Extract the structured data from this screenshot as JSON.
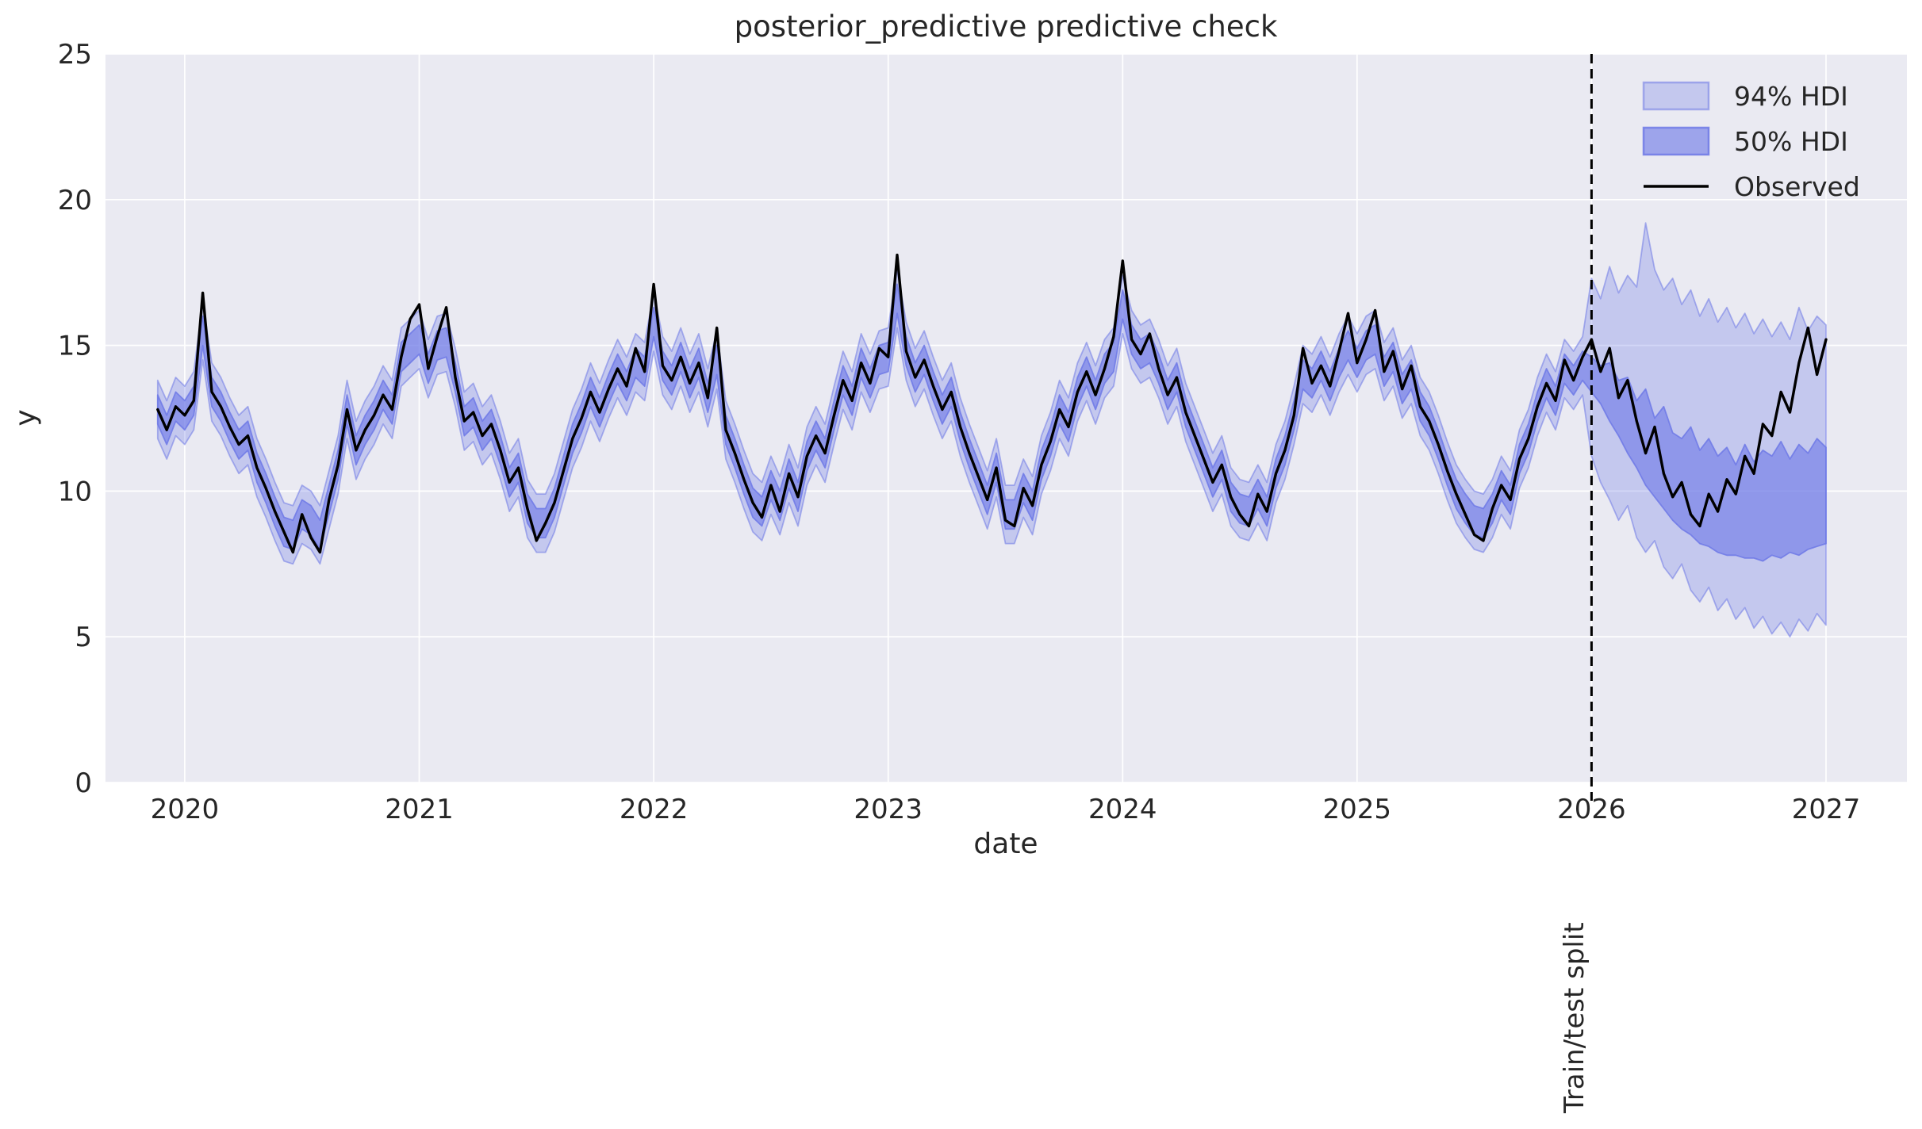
{
  "colors": {
    "figure_bg": "#ffffff",
    "axes_bg": "#eaeaf2",
    "grid": "#ffffff",
    "observed": "#000000",
    "band_base": "#6e79e6",
    "hdi94_fill_opacity": 0.3,
    "hdi94_edge_opacity": 0.55,
    "hdi50_fill_opacity": 0.62,
    "hdi50_edge_opacity": 0.85,
    "split_line": "#000000",
    "text": "#262626"
  },
  "chart_data": {
    "type": "line",
    "title": "posterior_predictive predictive check",
    "xlabel": "date",
    "ylabel": "y",
    "legend": [
      "94% HDI",
      "50% HDI",
      "Observed"
    ],
    "legend_position": "upper right",
    "grid": true,
    "xlim": [
      2019.662,
      2027.345
    ],
    "ylim": [
      0,
      25
    ],
    "xticks": [
      2020,
      2021,
      2022,
      2023,
      2024,
      2025,
      2026,
      2027
    ],
    "xtick_labels": [
      "2020",
      "2021",
      "2022",
      "2023",
      "2024",
      "2025",
      "2026",
      "2027"
    ],
    "yticks": [
      0,
      5,
      10,
      15,
      20,
      25
    ],
    "ytick_labels": [
      "0",
      "5",
      "10",
      "15",
      "20",
      "25"
    ],
    "annotation": {
      "text": "Train/test split",
      "x": 2026.0
    },
    "x_grid": {
      "start": 2019.8846,
      "step": 0.0384615,
      "n_points": 186,
      "unit": "decimal_year",
      "note": "biweekly samples; index 159 = 2026.0 train/test split"
    },
    "series": [
      {
        "name": "Observed",
        "values": [
          12.8,
          12.1,
          12.9,
          12.6,
          13.1,
          16.8,
          13.4,
          12.9,
          12.2,
          11.6,
          11.9,
          10.8,
          10.1,
          9.3,
          8.6,
          7.9,
          9.2,
          8.4,
          7.9,
          9.7,
          10.9,
          12.8,
          11.4,
          12.1,
          12.6,
          13.3,
          12.8,
          14.6,
          15.9,
          16.4,
          14.2,
          15.3,
          16.3,
          13.9,
          12.4,
          12.7,
          11.9,
          12.3,
          11.4,
          10.3,
          10.8,
          9.4,
          8.3,
          8.9,
          9.6,
          10.7,
          11.8,
          12.5,
          13.4,
          12.7,
          13.5,
          14.2,
          13.6,
          14.9,
          14.1,
          17.1,
          14.3,
          13.8,
          14.6,
          13.7,
          14.4,
          13.2,
          15.6,
          12.1,
          11.3,
          10.4,
          9.6,
          9.1,
          10.2,
          9.3,
          10.6,
          9.8,
          11.2,
          11.9,
          11.3,
          12.6,
          13.8,
          13.1,
          14.4,
          13.7,
          14.9,
          14.6,
          18.1,
          14.8,
          13.9,
          14.5,
          13.6,
          12.8,
          13.4,
          12.2,
          11.3,
          10.5,
          9.7,
          10.8,
          9.0,
          8.8,
          10.1,
          9.5,
          10.9,
          11.7,
          12.8,
          12.2,
          13.4,
          14.1,
          13.3,
          14.2,
          15.3,
          17.9,
          15.2,
          14.7,
          15.4,
          14.2,
          13.3,
          13.9,
          12.7,
          11.9,
          11.1,
          10.3,
          10.9,
          9.8,
          9.2,
          8.8,
          9.9,
          9.3,
          10.6,
          11.4,
          12.6,
          14.9,
          13.7,
          14.3,
          13.6,
          14.8,
          16.1,
          14.4,
          15.2,
          16.2,
          14.1,
          14.8,
          13.5,
          14.3,
          12.9,
          12.4,
          11.6,
          10.7,
          9.9,
          9.2,
          8.5,
          8.3,
          9.4,
          10.2,
          9.7,
          11.1,
          11.8,
          12.9,
          13.7,
          13.1,
          14.5,
          13.8,
          14.6,
          15.2,
          14.1,
          14.9,
          13.2,
          13.8,
          12.4,
          11.3,
          12.2,
          10.6,
          9.8,
          10.3,
          9.2,
          8.8,
          9.9,
          9.3,
          10.4,
          9.9,
          11.2,
          10.6,
          12.3,
          11.9,
          13.4,
          12.7,
          14.4,
          15.6,
          14.0,
          15.2
        ]
      },
      {
        "name": "94% HDI upper",
        "values": [
          13.8,
          13.1,
          13.9,
          13.6,
          14.1,
          16.5,
          14.4,
          13.9,
          13.2,
          12.6,
          12.9,
          11.8,
          11.1,
          10.3,
          9.6,
          9.5,
          10.2,
          10.0,
          9.5,
          10.7,
          11.9,
          13.8,
          12.4,
          13.1,
          13.6,
          14.3,
          13.8,
          15.6,
          15.9,
          16.2,
          15.2,
          16.0,
          16.1,
          14.9,
          13.4,
          13.7,
          12.9,
          13.3,
          12.4,
          11.3,
          11.8,
          10.4,
          9.9,
          9.9,
          10.6,
          11.7,
          12.8,
          13.5,
          14.4,
          13.7,
          14.5,
          15.2,
          14.6,
          15.4,
          15.1,
          16.8,
          15.3,
          14.8,
          15.6,
          14.7,
          15.4,
          14.2,
          15.5,
          13.1,
          12.3,
          11.4,
          10.6,
          10.3,
          11.2,
          10.5,
          11.6,
          10.8,
          12.2,
          12.9,
          12.3,
          13.6,
          14.8,
          14.1,
          15.4,
          14.7,
          15.5,
          15.6,
          17.6,
          15.8,
          14.9,
          15.5,
          14.6,
          13.8,
          14.4,
          13.2,
          12.3,
          11.5,
          10.7,
          11.8,
          10.2,
          10.2,
          11.1,
          10.5,
          11.9,
          12.7,
          13.8,
          13.2,
          14.4,
          15.1,
          14.3,
          15.2,
          15.6,
          17.4,
          16.2,
          15.7,
          15.9,
          15.2,
          14.3,
          14.9,
          13.7,
          12.9,
          12.1,
          11.3,
          11.9,
          10.8,
          10.4,
          10.3,
          10.9,
          10.3,
          11.6,
          12.4,
          13.6,
          15.0,
          14.7,
          15.3,
          14.6,
          15.4,
          16.0,
          15.4,
          16.0,
          16.2,
          15.1,
          15.6,
          14.5,
          15.0,
          13.9,
          13.4,
          12.6,
          11.7,
          10.9,
          10.4,
          10.0,
          9.9,
          10.4,
          11.2,
          10.7,
          12.1,
          12.8,
          13.9,
          14.7,
          14.1,
          15.2,
          14.8,
          15.3,
          17.3,
          16.6,
          17.7,
          16.8,
          17.4,
          17.0,
          19.2,
          17.6,
          16.9,
          17.3,
          16.4,
          16.9,
          16.0,
          16.6,
          15.8,
          16.3,
          15.6,
          16.1,
          15.4,
          15.9,
          15.3,
          15.8,
          15.2,
          16.3,
          15.5,
          16.0,
          15.7
        ]
      },
      {
        "name": "94% HDI lower",
        "values": [
          11.8,
          11.1,
          11.9,
          11.6,
          12.1,
          14.5,
          12.4,
          11.9,
          11.2,
          10.6,
          10.9,
          9.8,
          9.1,
          8.3,
          7.6,
          7.5,
          8.2,
          8.0,
          7.5,
          8.7,
          9.9,
          11.8,
          10.4,
          11.1,
          11.6,
          12.3,
          11.8,
          13.6,
          13.9,
          14.2,
          13.2,
          14.0,
          14.1,
          12.9,
          11.4,
          11.7,
          10.9,
          11.3,
          10.4,
          9.3,
          9.8,
          8.4,
          7.9,
          7.9,
          8.6,
          9.7,
          10.8,
          11.5,
          12.4,
          11.7,
          12.5,
          13.2,
          12.6,
          13.4,
          13.1,
          14.8,
          13.3,
          12.8,
          13.6,
          12.7,
          13.4,
          12.2,
          13.5,
          11.1,
          10.3,
          9.4,
          8.6,
          8.3,
          9.2,
          8.5,
          9.6,
          8.8,
          10.2,
          10.9,
          10.3,
          11.6,
          12.8,
          12.1,
          13.4,
          12.7,
          13.5,
          13.6,
          15.6,
          13.8,
          12.9,
          13.5,
          12.6,
          11.8,
          12.4,
          11.2,
          10.3,
          9.5,
          8.7,
          9.8,
          8.2,
          8.2,
          9.1,
          8.5,
          9.9,
          10.7,
          11.8,
          11.2,
          12.4,
          13.1,
          12.3,
          13.2,
          13.6,
          15.4,
          14.2,
          13.7,
          13.9,
          13.2,
          12.3,
          12.9,
          11.7,
          10.9,
          10.1,
          9.3,
          9.9,
          8.8,
          8.4,
          8.3,
          8.9,
          8.3,
          9.6,
          10.4,
          11.6,
          13.0,
          12.7,
          13.3,
          12.6,
          13.4,
          14.0,
          13.4,
          14.0,
          14.2,
          13.1,
          13.6,
          12.5,
          13.0,
          11.9,
          11.4,
          10.6,
          9.7,
          8.9,
          8.4,
          8.0,
          7.9,
          8.4,
          9.2,
          8.7,
          10.1,
          10.8,
          11.9,
          12.7,
          12.1,
          13.2,
          12.8,
          13.3,
          11.2,
          10.3,
          9.7,
          9.0,
          9.5,
          8.4,
          7.9,
          8.3,
          7.4,
          7.0,
          7.5,
          6.6,
          6.2,
          6.7,
          5.9,
          6.3,
          5.6,
          6.0,
          5.3,
          5.7,
          5.1,
          5.5,
          5.0,
          5.6,
          5.2,
          5.8,
          5.4
        ]
      },
      {
        "name": "50% HDI upper",
        "values": [
          13.3,
          12.6,
          13.4,
          13.1,
          13.6,
          16.0,
          13.9,
          13.4,
          12.7,
          12.1,
          12.4,
          11.3,
          10.6,
          9.8,
          9.1,
          9.0,
          9.7,
          9.5,
          9.0,
          10.2,
          11.4,
          13.3,
          11.9,
          12.6,
          13.1,
          13.8,
          13.3,
          15.1,
          15.4,
          15.7,
          14.7,
          15.5,
          15.6,
          14.4,
          12.9,
          13.2,
          12.4,
          12.8,
          11.9,
          10.8,
          11.3,
          9.9,
          9.4,
          9.4,
          10.1,
          11.2,
          12.3,
          13.0,
          13.9,
          13.2,
          14.0,
          14.7,
          14.1,
          14.9,
          14.6,
          16.3,
          14.8,
          14.3,
          15.1,
          14.2,
          14.9,
          13.7,
          15.0,
          12.6,
          11.8,
          10.9,
          10.1,
          9.8,
          10.7,
          10.0,
          11.1,
          10.3,
          11.7,
          12.4,
          11.8,
          13.1,
          14.3,
          13.6,
          14.9,
          14.2,
          15.0,
          15.1,
          17.1,
          15.3,
          14.4,
          15.0,
          14.1,
          13.3,
          13.9,
          12.7,
          11.8,
          11.0,
          10.2,
          11.3,
          9.7,
          9.7,
          10.6,
          10.0,
          11.4,
          12.2,
          13.3,
          12.7,
          13.9,
          14.6,
          13.8,
          14.7,
          15.1,
          16.9,
          15.7,
          15.2,
          15.4,
          14.7,
          13.8,
          14.4,
          13.2,
          12.4,
          11.6,
          10.8,
          11.4,
          10.3,
          9.9,
          9.8,
          10.4,
          9.8,
          11.1,
          11.9,
          13.1,
          14.5,
          14.2,
          14.8,
          14.1,
          14.9,
          15.5,
          14.9,
          15.5,
          15.7,
          14.6,
          15.1,
          14.0,
          14.5,
          13.4,
          12.9,
          12.1,
          11.2,
          10.4,
          9.9,
          9.5,
          9.4,
          9.9,
          10.7,
          10.2,
          11.6,
          12.3,
          13.4,
          14.2,
          13.6,
          14.7,
          14.3,
          14.8,
          14.6,
          14.3,
          14.4,
          13.8,
          13.9,
          13.1,
          13.5,
          12.5,
          12.9,
          12.0,
          11.8,
          12.2,
          11.4,
          11.8,
          11.2,
          11.5,
          10.9,
          11.6,
          11.0,
          11.4,
          11.2,
          11.7,
          11.1,
          11.6,
          11.3,
          11.8,
          11.5
        ]
      },
      {
        "name": "50% HDI lower",
        "values": [
          12.3,
          11.6,
          12.4,
          12.1,
          12.6,
          15.0,
          12.9,
          12.4,
          11.7,
          11.1,
          11.4,
          10.3,
          9.6,
          8.8,
          8.1,
          8.0,
          8.7,
          8.5,
          8.0,
          9.2,
          10.4,
          12.3,
          10.9,
          11.6,
          12.1,
          12.8,
          12.3,
          14.1,
          14.4,
          14.7,
          13.7,
          14.5,
          14.6,
          13.4,
          11.9,
          12.2,
          11.4,
          11.8,
          10.9,
          9.8,
          10.3,
          8.9,
          8.4,
          8.4,
          9.1,
          10.2,
          11.3,
          12.0,
          12.9,
          12.2,
          13.0,
          13.7,
          13.1,
          13.9,
          13.6,
          15.3,
          13.8,
          13.3,
          14.1,
          13.2,
          13.9,
          12.7,
          14.0,
          11.6,
          10.8,
          9.9,
          9.1,
          8.8,
          9.7,
          9.0,
          10.1,
          9.3,
          10.7,
          11.4,
          10.8,
          12.1,
          13.3,
          12.6,
          13.9,
          13.2,
          14.0,
          14.1,
          16.1,
          14.3,
          13.4,
          14.0,
          13.1,
          12.3,
          12.9,
          11.7,
          10.8,
          10.0,
          9.2,
          10.3,
          8.7,
          8.7,
          9.6,
          9.0,
          10.4,
          11.2,
          12.3,
          11.7,
          12.9,
          13.6,
          12.8,
          13.7,
          14.1,
          15.9,
          14.7,
          14.2,
          14.4,
          13.7,
          12.8,
          13.4,
          12.2,
          11.4,
          10.6,
          9.8,
          10.4,
          9.3,
          8.9,
          8.8,
          9.4,
          8.8,
          10.1,
          10.9,
          12.1,
          13.5,
          13.2,
          13.8,
          13.1,
          13.9,
          14.5,
          13.9,
          14.5,
          14.7,
          13.6,
          14.1,
          13.0,
          13.5,
          12.4,
          11.9,
          11.1,
          10.2,
          9.4,
          8.9,
          8.5,
          8.4,
          8.9,
          9.7,
          9.2,
          10.6,
          11.3,
          12.4,
          13.2,
          12.6,
          13.7,
          13.3,
          13.8,
          13.4,
          13.0,
          12.4,
          11.9,
          11.3,
          10.8,
          10.2,
          9.8,
          9.4,
          9.0,
          8.7,
          8.5,
          8.2,
          8.1,
          7.9,
          7.8,
          7.8,
          7.7,
          7.7,
          7.6,
          7.8,
          7.7,
          7.9,
          7.8,
          8.0,
          8.1,
          8.2
        ]
      }
    ]
  }
}
